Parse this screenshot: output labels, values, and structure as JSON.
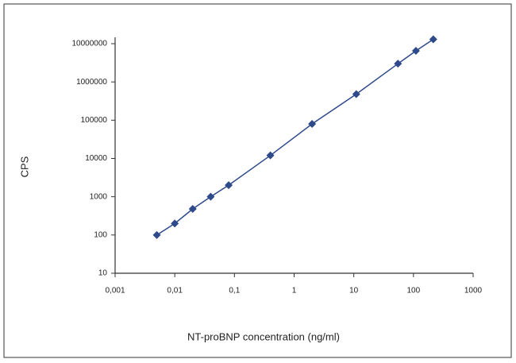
{
  "chart_data": {
    "type": "scatter",
    "x_label": "NT-proBNP concentration (ng/ml)",
    "y_label": "CPS",
    "x": [
      0.005,
      0.01,
      0.02,
      0.04,
      0.08,
      0.4,
      2,
      11,
      55,
      110,
      215
    ],
    "values": [
      100,
      200,
      480,
      1000,
      2000,
      12000,
      80000,
      480000,
      3000000,
      6500000,
      13000000
    ],
    "color": "#2e4a8a",
    "connect": true,
    "log_x": true,
    "log_y": true,
    "xlim": [
      0.001,
      1000
    ],
    "xticks": [
      {
        "value": 0.001,
        "label": "0,001"
      },
      {
        "value": 0.01,
        "label": "0,01"
      },
      {
        "value": 0.1,
        "label": "0,1"
      },
      1,
      10,
      100,
      1000
    ],
    "ylim": [
      10,
      10000000
    ],
    "yticks": [
      10,
      100,
      1000,
      10000,
      100000,
      1000000,
      10000000
    ]
  }
}
